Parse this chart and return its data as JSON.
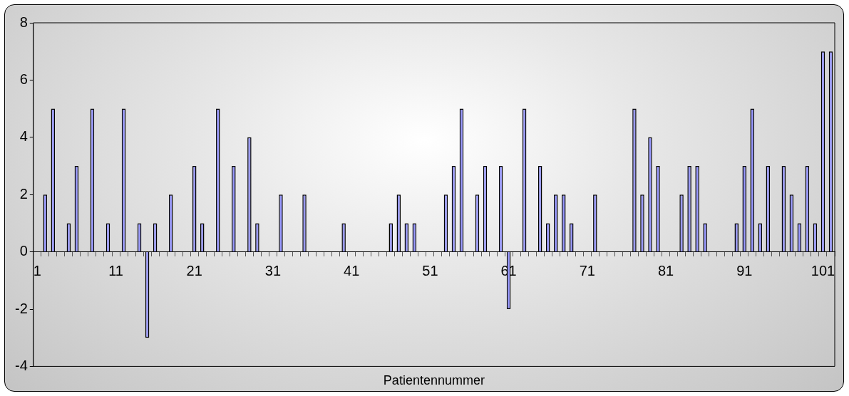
{
  "chart_data": {
    "type": "bar",
    "xlabel": "Patientennummer",
    "categories": [
      "1",
      null,
      null,
      null,
      null,
      null,
      null,
      null,
      null,
      null,
      "11",
      null,
      null,
      null,
      null,
      null,
      null,
      null,
      null,
      null,
      "21",
      null,
      null,
      null,
      null,
      null,
      null,
      null,
      null,
      null,
      "31",
      null,
      null,
      null,
      null,
      null,
      null,
      null,
      null,
      null,
      "41",
      null,
      null,
      null,
      null,
      null,
      null,
      null,
      null,
      null,
      "51",
      null,
      null,
      null,
      null,
      null,
      null,
      null,
      null,
      null,
      "61",
      null,
      null,
      null,
      null,
      null,
      null,
      null,
      null,
      null,
      "71",
      null,
      null,
      null,
      null,
      null,
      null,
      null,
      null,
      null,
      "81",
      null,
      null,
      null,
      null,
      null,
      null,
      null,
      null,
      null,
      "91",
      null,
      null,
      null,
      null,
      null,
      null,
      null,
      null,
      null,
      "101",
      null
    ],
    "values": [
      0,
      2,
      5,
      0,
      1,
      3,
      0,
      5,
      0,
      1,
      0,
      5,
      0,
      1,
      -3,
      1,
      0,
      2,
      0,
      0,
      3,
      1,
      0,
      5,
      0,
      3,
      0,
      4,
      1,
      0,
      0,
      2,
      0,
      0,
      2,
      0,
      0,
      0,
      0,
      1,
      0,
      0,
      0,
      0,
      0,
      1,
      2,
      1,
      1,
      0,
      0,
      0,
      2,
      3,
      5,
      0,
      2,
      3,
      0,
      3,
      -2,
      0,
      5,
      0,
      3,
      1,
      2,
      2,
      1,
      0,
      0,
      2,
      0,
      0,
      0,
      0,
      5,
      2,
      4,
      3,
      0,
      0,
      2,
      3,
      3,
      1,
      0,
      0,
      0,
      1,
      3,
      5,
      1,
      3,
      0,
      3,
      2,
      1,
      3,
      1,
      7,
      7
    ],
    "color": "#9999ff",
    "ylim": [
      -4,
      8
    ],
    "yticks": [
      -4,
      -2,
      0,
      2,
      4,
      6,
      8
    ],
    "grid": false,
    "legend": false
  }
}
